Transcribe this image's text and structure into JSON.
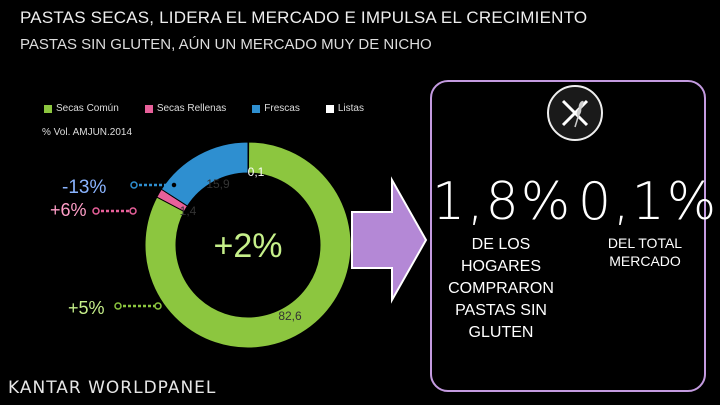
{
  "title": "PASTAS SECAS, LIDERA EL MERCADO E IMPULSA EL CRECIMIENTO",
  "subtitle": "PASTAS SIN GLUTEN, AÚN UN MERCADO MUY DE NICHO",
  "measure_label": "% Vol. AMJUN.2014",
  "center_label": "+2%",
  "segment_changes": {
    "secas_comun": "+5%",
    "secas_rellenas": "+6%",
    "frescas": "-13%"
  },
  "callout": {
    "households_pct": "1,8%",
    "households_text_lines": [
      "DE LOS",
      "HOGARES",
      "COMPRARON",
      "PASTAS SIN",
      "GLUTEN"
    ],
    "market_pct": "0,1%",
    "market_text_lines": [
      "DEL TOTAL",
      "MERCADO"
    ]
  },
  "brand": "KANTAR WORLDPANEL",
  "icon": "gluten-free-icon",
  "colors": {
    "secas_comun": "#8cc63f",
    "secas_rellenas": "#e8609a",
    "frescas": "#2e8fd0",
    "listas": "#ffffff",
    "box_border": "#c49be0",
    "arrow": "#c49be0"
  },
  "chart_data": {
    "type": "pie",
    "donut": true,
    "title": "",
    "legend_position": "top",
    "series": [
      {
        "name": "Secas Común",
        "value": 82.6,
        "label": "82,6"
      },
      {
        "name": "Secas Rellenas",
        "value": 1.4,
        "label": "1,4"
      },
      {
        "name": "Frescas",
        "value": 15.9,
        "label": "15,9"
      },
      {
        "name": "Listas",
        "value": 0.1,
        "label": "0,1"
      }
    ]
  }
}
